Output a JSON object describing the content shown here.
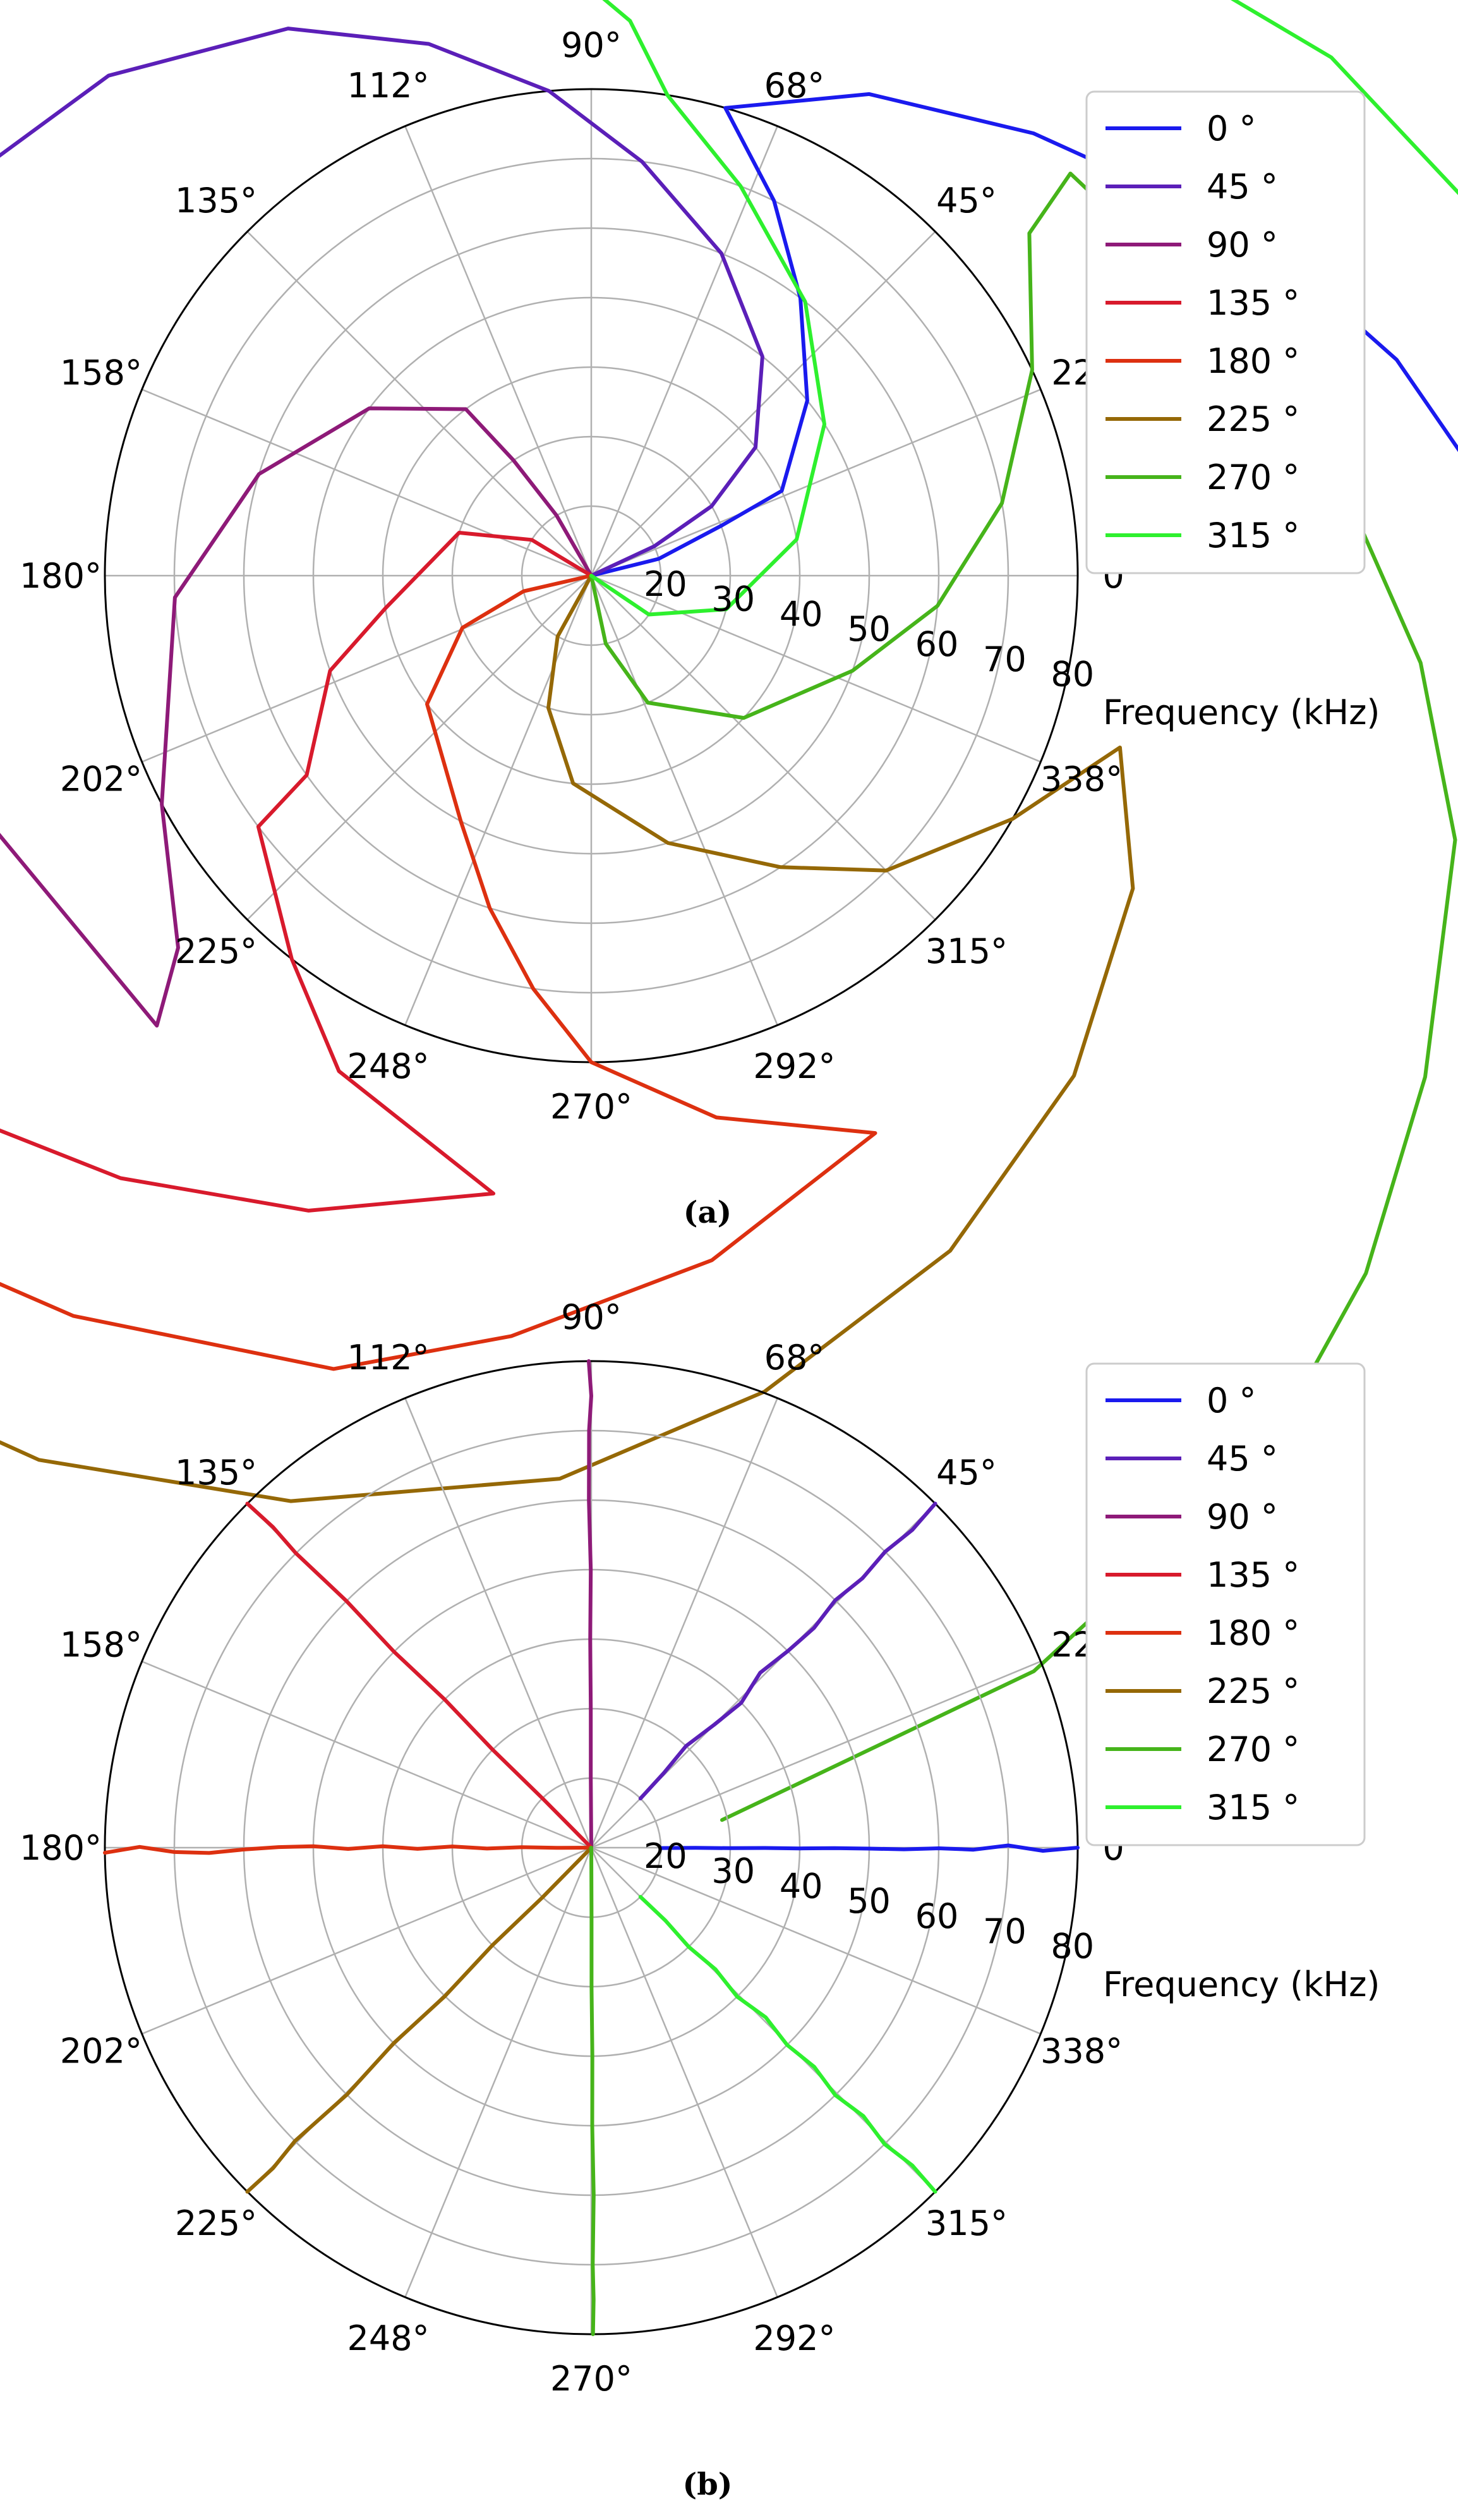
{
  "figure": {
    "panel_labels": [
      "(a)",
      "(b)"
    ]
  },
  "colors": {
    "series": [
      "#1a1aee",
      "#5b1fb8",
      "#8e1a78",
      "#d81a2c",
      "#dd3010",
      "#956806",
      "#46b41a",
      "#2ef02e"
    ],
    "grid": "#b0b0b0",
    "frame": "#000000"
  },
  "chart_data": [
    {
      "type": "line",
      "projection": "polar",
      "radial_axis_label": "Frequency (kHz)",
      "radial_ticks": [
        20,
        30,
        40,
        50,
        60,
        70,
        80
      ],
      "rlim": [
        10,
        80
      ],
      "theta_tick_labels": [
        "0°",
        "22°",
        "45°",
        "68°",
        "90°",
        "112°",
        "135°",
        "158°",
        "180°",
        "202°",
        "225°",
        "248°",
        "270°",
        "292°",
        "315°",
        "338°"
      ],
      "grid": true,
      "legend_location": "top-right",
      "series": [
        {
          "name": "0 °",
          "points": [
            [
              10,
              302
            ],
            [
              20,
              14
            ],
            [
              30,
              21
            ],
            [
              40,
              24
            ],
            [
              50,
              39
            ],
            [
              60,
              53
            ],
            [
              70,
              64
            ],
            [
              80,
              74
            ],
            [
              90,
              60
            ],
            [
              100,
              45
            ],
            [
              110,
              33
            ],
            [
              120,
              24
            ],
            [
              130,
              15
            ],
            [
              140,
              5
            ],
            [
              150,
              355
            ],
            [
              160,
              345
            ],
            [
              170,
              345
            ],
            [
              180,
              354
            ],
            [
              190,
              2
            ]
          ]
        },
        {
          "name": "45 °",
          "points": [
            [
              10,
              10
            ],
            [
              20,
              25
            ],
            [
              30,
              30
            ],
            [
              40,
              38
            ],
            [
              50,
              52
            ],
            [
              60,
              68
            ],
            [
              70,
              83
            ],
            [
              80,
              95
            ],
            [
              90,
              107
            ],
            [
              100,
              119
            ],
            [
              110,
              134
            ],
            [
              120,
              152
            ],
            [
              130,
              175
            ],
            [
              140,
              193
            ],
            [
              150,
              182
            ],
            [
              160,
              162
            ],
            [
              170,
              142
            ],
            [
              180,
              136
            ],
            [
              190,
              131
            ]
          ]
        },
        {
          "name": "90 °",
          "points": [
            [
              10,
              90
            ],
            [
              20,
              120
            ],
            [
              30,
              124
            ],
            [
              40,
              127
            ],
            [
              50,
              143
            ],
            [
              60,
              163
            ],
            [
              70,
              183
            ],
            [
              80,
              208
            ],
            [
              90,
              222
            ],
            [
              100,
              226
            ],
            [
              110,
              193
            ],
            [
              120,
              178
            ],
            [
              130,
              162
            ],
            [
              140,
              148
            ],
            [
              150,
              136
            ],
            [
              160,
              127
            ],
            [
              170,
              112
            ],
            [
              180,
              98
            ],
            [
              190,
              100
            ]
          ]
        },
        {
          "name": "135 °",
          "points": [
            [
              10,
              135
            ],
            [
              20,
              149
            ],
            [
              30,
              162
            ],
            [
              40,
              189
            ],
            [
              50,
              200
            ],
            [
              60,
              215
            ],
            [
              70,
              217
            ],
            [
              80,
              232
            ],
            [
              90,
              243
            ],
            [
              100,
              261
            ],
            [
              110,
              246
            ],
            [
              120,
              232
            ],
            [
              130,
              220
            ],
            [
              140,
              209
            ],
            [
              150,
              201
            ],
            [
              160,
              190
            ],
            [
              170,
              175
            ],
            [
              180,
              159
            ],
            [
              190,
              154
            ]
          ]
        },
        {
          "name": "180 °",
          "points": [
            [
              10,
              180
            ],
            [
              20,
              193
            ],
            [
              30,
              202
            ],
            [
              40,
              218
            ],
            [
              50,
              242
            ],
            [
              60,
              253
            ],
            [
              70,
              262
            ],
            [
              80,
              270
            ],
            [
              90,
              283
            ],
            [
              100,
              297
            ],
            [
              110,
              280
            ],
            [
              120,
              264
            ],
            [
              130,
              252
            ],
            [
              140,
              235
            ],
            [
              150,
              222
            ],
            [
              160,
              209
            ],
            [
              170,
              196
            ],
            [
              180,
              186
            ],
            [
              190,
              182
            ]
          ]
        },
        {
          "name": "225 °",
          "points": [
            [
              10,
              225
            ],
            [
              20,
              241
            ],
            [
              30,
              252
            ],
            [
              40,
              265
            ],
            [
              50,
              286
            ],
            [
              60,
              303
            ],
            [
              70,
              315
            ],
            [
              80,
              330
            ],
            [
              90,
              342
            ],
            [
              100,
              330
            ],
            [
              110,
              314
            ],
            [
              120,
              298
            ],
            [
              130,
              282
            ],
            [
              140,
              268
            ],
            [
              150,
              252
            ],
            [
              160,
              238
            ],
            [
              170,
              224
            ],
            [
              180,
              215
            ],
            [
              190,
              214
            ]
          ]
        },
        {
          "name": "270 °",
          "points": [
            [
              10,
              270
            ],
            [
              20,
              282
            ],
            [
              30,
              294
            ],
            [
              40,
              317
            ],
            [
              50,
              340
            ],
            [
              60,
              355
            ],
            [
              70,
              10
            ],
            [
              80,
              25
            ],
            [
              90,
              38
            ],
            [
              100,
              40
            ],
            [
              110,
              20
            ],
            [
              120,
              5
            ],
            [
              130,
              354
            ],
            [
              140,
              343
            ],
            [
              150,
              329
            ],
            [
              160,
              318
            ],
            [
              170,
              307
            ],
            [
              180,
              292
            ],
            [
              190,
              276
            ]
          ]
        },
        {
          "name": "315 °",
          "points": [
            [
              10,
              315
            ],
            [
              20,
              326
            ],
            [
              30,
              346
            ],
            [
              40,
              10
            ],
            [
              50,
              33
            ],
            [
              60,
              52
            ],
            [
              70,
              69
            ],
            [
              80,
              81
            ],
            [
              90,
              86
            ],
            [
              100,
              94
            ],
            [
              110,
              80
            ],
            [
              120,
              64
            ],
            [
              130,
              50
            ],
            [
              140,
              35
            ],
            [
              150,
              20
            ],
            [
              160,
              5
            ],
            [
              170,
              351
            ],
            [
              180,
              333
            ],
            [
              190,
              317
            ]
          ]
        }
      ]
    },
    {
      "type": "line",
      "projection": "polar",
      "radial_axis_label": "Frequency (kHz)",
      "radial_ticks": [
        20,
        30,
        40,
        50,
        60,
        70,
        80
      ],
      "rlim": [
        10,
        80
      ],
      "theta_tick_labels": [
        "0°",
        "22°",
        "45°",
        "68°",
        "90°",
        "112°",
        "135°",
        "158°",
        "180°",
        "202°",
        "225°",
        "248°",
        "270°",
        "292°",
        "315°",
        "338°"
      ],
      "grid": true,
      "legend_location": "top-right",
      "series": [
        {
          "name": "0 °",
          "points": [
            [
              20,
              359.7
            ],
            [
              25,
              359.9
            ],
            [
              30,
              359.8
            ],
            [
              35,
              359.9
            ],
            [
              40,
              359.8
            ],
            [
              45,
              359.9
            ],
            [
              50,
              359.8
            ],
            [
              55,
              359.7
            ],
            [
              60,
              359.9
            ],
            [
              65,
              359.7
            ],
            [
              70,
              0.3
            ],
            [
              75,
              359.6
            ],
            [
              80,
              0
            ]
          ]
        },
        {
          "name": "45 °",
          "points": [
            [
              20,
              45
            ],
            [
              25,
              45.8
            ],
            [
              30,
              47
            ],
            [
              35,
              45
            ],
            [
              40,
              44
            ],
            [
              45,
              46
            ],
            [
              50,
              45
            ],
            [
              55,
              44.6
            ],
            [
              60,
              45.4
            ],
            [
              65,
              44.8
            ],
            [
              70,
              45.2
            ],
            [
              75,
              44.7
            ],
            [
              80,
              45
            ]
          ]
        },
        {
          "name": "90 °",
          "points": [
            [
              10,
              90
            ],
            [
              20,
              90.4
            ],
            [
              30,
              90.2
            ],
            [
              40,
              90.3
            ],
            [
              50,
              90.1
            ],
            [
              60,
              90.4
            ],
            [
              70,
              90.3
            ],
            [
              75,
              90
            ],
            [
              80,
              90.3
            ]
          ]
        },
        {
          "name": "135 °",
          "points": [
            [
              10,
              135
            ],
            [
              20,
              134.7
            ],
            [
              30,
              135.2
            ],
            [
              40,
              134.7
            ],
            [
              50,
              135.2
            ],
            [
              60,
              134.8
            ],
            [
              70,
              135.1
            ],
            [
              75,
              134.8
            ],
            [
              80,
              135
            ]
          ]
        },
        {
          "name": "180 °",
          "points": [
            [
              10,
              180
            ],
            [
              15,
              180.3
            ],
            [
              20,
              179.6
            ],
            [
              25,
              180.5
            ],
            [
              30,
              179.5
            ],
            [
              35,
              180.4
            ],
            [
              40,
              179.6
            ],
            [
              45,
              180.3
            ],
            [
              50,
              179.7
            ],
            [
              55,
              179.9
            ],
            [
              60,
              180.3
            ],
            [
              65,
              180.8
            ],
            [
              70,
              180.6
            ],
            [
              75,
              179.9
            ],
            [
              80,
              180.6
            ]
          ]
        },
        {
          "name": "225 °",
          "points": [
            [
              10,
              225
            ],
            [
              20,
              225.5
            ],
            [
              30,
              224.6
            ],
            [
              40,
              225.4
            ],
            [
              50,
              224.7
            ],
            [
              60,
              225.3
            ],
            [
              70,
              224.7
            ],
            [
              75,
              225.2
            ],
            [
              80,
              225
            ]
          ]
        },
        {
          "name": "270 °",
          "points": [
            [
              10,
              270
            ],
            [
              20,
              270.2
            ],
            [
              30,
              270.1
            ],
            [
              40,
              270.3
            ],
            [
              50,
              270.2
            ],
            [
              60,
              270.4
            ],
            [
              70,
              270.2
            ],
            [
              75,
              270.3
            ],
            [
              80,
              270.2
            ]
          ]
        },
        {
          "name": "315 °",
          "points": [
            [
              20,
              315
            ],
            [
              25,
              315.5
            ],
            [
              30,
              314.5
            ],
            [
              35,
              315.6
            ],
            [
              40,
              314.4
            ],
            [
              45,
              315.8
            ],
            [
              50,
              314.8
            ],
            [
              55,
              315.5
            ],
            [
              60,
              314.6
            ],
            [
              65,
              315.4
            ],
            [
              70,
              314.7
            ],
            [
              75,
              315.3
            ],
            [
              80,
              315
            ]
          ]
        }
      ]
    }
  ]
}
